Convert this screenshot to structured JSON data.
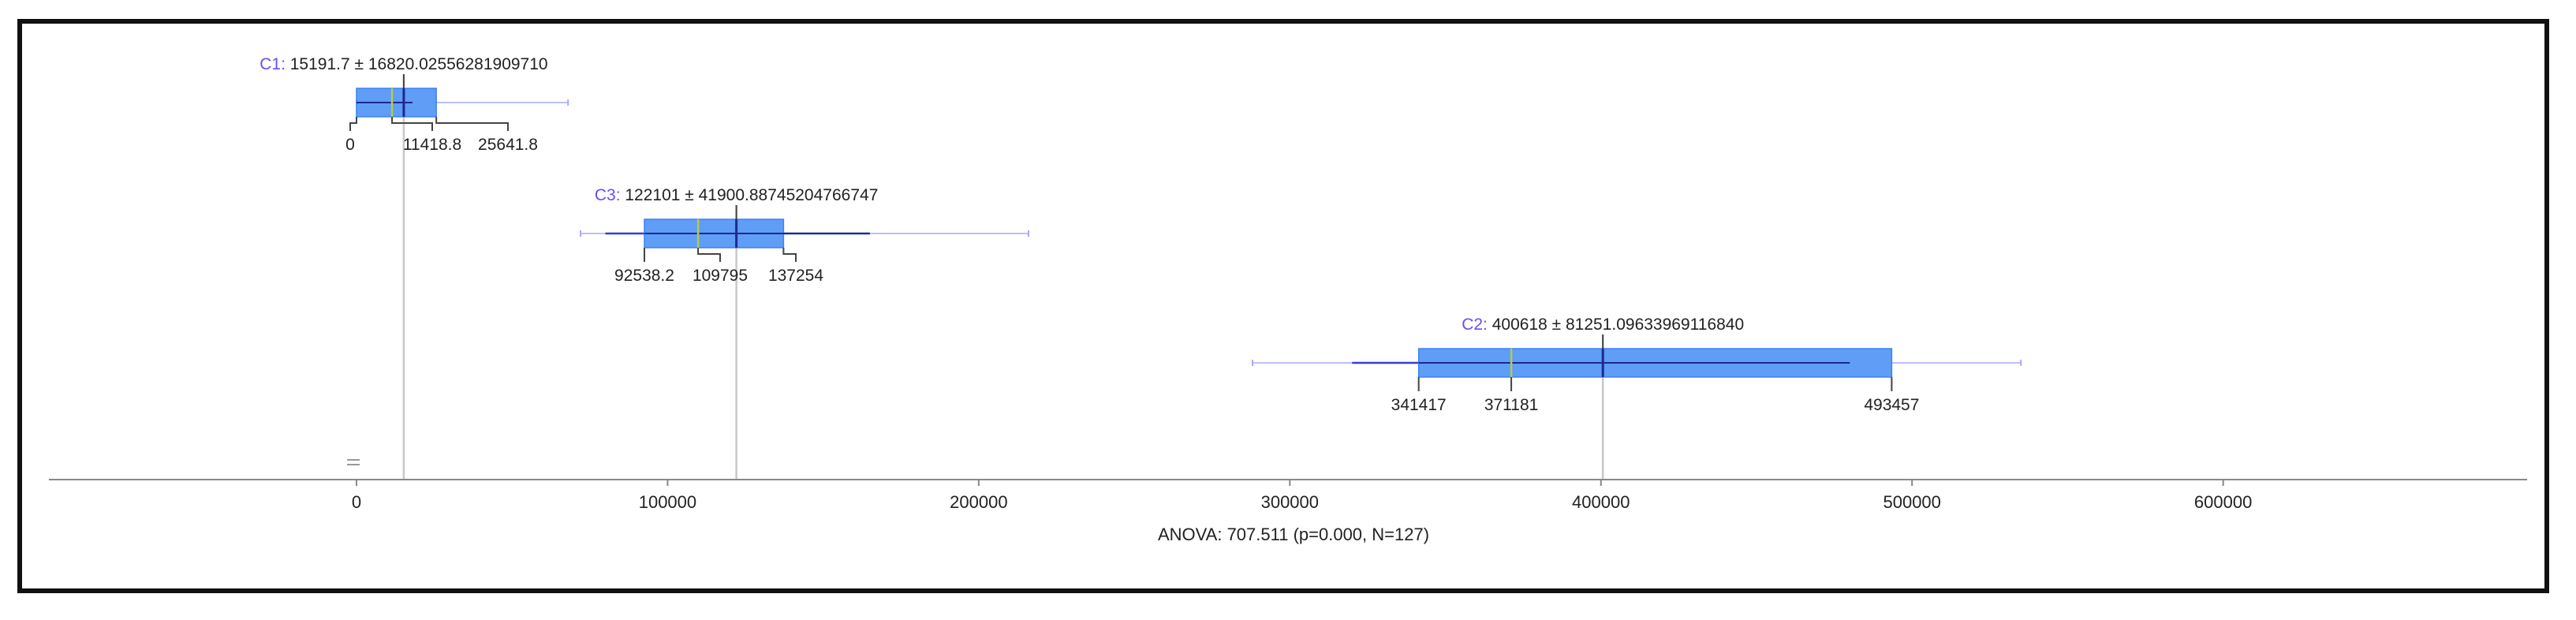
{
  "colors": {
    "box_fill": "#5f9df7",
    "box_edge": "#3b82f6",
    "median": "#b8c94a",
    "mean": "#1b2a8c",
    "whisker_inner": "#3a3ad6",
    "whisker_outer": "#a8a8ff",
    "guide": "#c8c8c8",
    "axis": "#888888",
    "text": "#222222",
    "accent": "#6a4cff"
  },
  "chart_data": {
    "type": "box",
    "orientation": "horizontal",
    "xlim": [
      -100000,
      710000
    ],
    "x_ticks": [
      0,
      100000,
      200000,
      300000,
      400000,
      500000,
      600000
    ],
    "x_tick_labels": [
      "0",
      "100000",
      "200000",
      "300000",
      "400000",
      "500000",
      "600000"
    ],
    "xlabel": "ANOVA: 707.511 (p=0.000, N=127)",
    "groups": [
      {
        "name": "C1",
        "summary": "15191.7 ± 16820.02556281909710",
        "mean": 15191.7,
        "q1": 0,
        "median": 11418.8,
        "q3": 25641.8,
        "inner_whisker": [
          0,
          18000
        ],
        "outer_whisker": [
          0,
          68000
        ],
        "labels": [
          "0",
          "11418.8",
          "25641.8"
        ],
        "row": 0
      },
      {
        "name": "C3",
        "summary": "122101 ± 41900.88745204766747",
        "mean": 122101,
        "q1": 92538.2,
        "median": 109795,
        "q3": 137254,
        "inner_whisker": [
          80000,
          165000
        ],
        "outer_whisker": [
          72000,
          216000
        ],
        "labels": [
          "92538.2",
          "109795",
          "137254"
        ],
        "row": 1
      },
      {
        "name": "C2",
        "summary": "400618 ± 81251.09633969116840",
        "mean": 400618,
        "q1": 341417,
        "median": 371181,
        "q3": 493457,
        "inner_whisker": [
          320000,
          480000
        ],
        "outer_whisker": [
          288000,
          535000
        ],
        "labels": [
          "341417",
          "371181",
          "493457"
        ],
        "row": 2
      }
    ]
  }
}
